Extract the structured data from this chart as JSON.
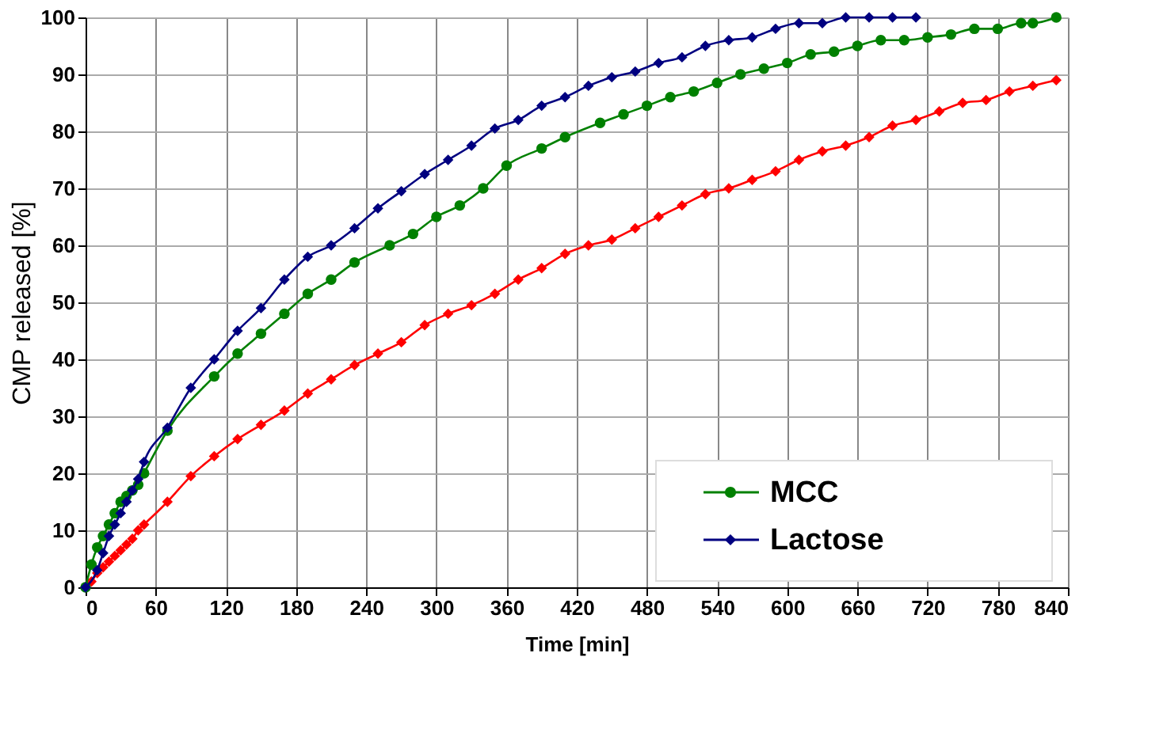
{
  "chart_data": {
    "type": "line",
    "xlabel": "Time [min]",
    "ylabel": "CMP released [%]",
    "xlim": [
      0,
      840
    ],
    "xticks": [
      0,
      60,
      120,
      180,
      240,
      300,
      360,
      420,
      480,
      540,
      600,
      660,
      720,
      780,
      840
    ],
    "ylim": [
      0,
      100
    ],
    "yticks": [
      0,
      10,
      20,
      30,
      40,
      50,
      60,
      70,
      80,
      90,
      100
    ],
    "grid": true,
    "legend": "bottom right",
    "line_style": "solid",
    "series": [
      {
        "color": "#ff0000",
        "marker": "diamond",
        "x": [
          0,
          5,
          10,
          15,
          20,
          25,
          30,
          35,
          40,
          45,
          50,
          70,
          90,
          110,
          130,
          150,
          170,
          190,
          210,
          230,
          250,
          270,
          290,
          310,
          330,
          350,
          370,
          390,
          410,
          430,
          450,
          470,
          490,
          510,
          530,
          550,
          570,
          590,
          610,
          630,
          650,
          670,
          690,
          710,
          730,
          750,
          770,
          790,
          810,
          830
        ],
        "values": [
          0,
          1,
          2.5,
          3.5,
          4.5,
          5.5,
          6.5,
          7.5,
          8.5,
          10,
          11,
          15,
          19.5,
          23,
          26,
          28.5,
          31,
          34,
          36.5,
          39,
          41,
          43,
          46,
          48,
          49.5,
          51.5,
          54,
          56,
          58.5,
          60,
          61,
          63,
          65,
          67,
          69,
          70,
          71.5,
          73,
          75,
          76.5,
          77.5,
          79,
          81,
          82,
          83.5,
          85,
          85.5,
          87,
          88,
          89
        ]
      },
      {
        "name": "MCC",
        "color": "#008000",
        "marker": "circle",
        "x": [
          0,
          5,
          10,
          15,
          20,
          25,
          30,
          35,
          40,
          45,
          50,
          70,
          110,
          130,
          150,
          170,
          190,
          210,
          230,
          260,
          280,
          300,
          320,
          340,
          360,
          390,
          410,
          440,
          460,
          480,
          500,
          520,
          540,
          560,
          580,
          600,
          620,
          640,
          660,
          680,
          700,
          720,
          740,
          760,
          780,
          800,
          810,
          830
        ],
        "values": [
          0,
          4,
          7,
          9,
          11,
          13,
          15,
          16,
          17,
          18,
          20,
          27.5,
          37,
          41,
          44.5,
          48,
          51.5,
          54,
          57,
          60,
          62,
          65,
          67,
          70,
          74,
          77,
          79,
          81.5,
          83,
          84.5,
          86,
          87,
          88.5,
          90,
          91,
          92,
          93.5,
          94,
          95,
          96,
          96,
          96.5,
          97,
          98,
          98,
          99,
          99,
          100
        ]
      },
      {
        "name": "Lactose",
        "color": "#000080",
        "marker": "diamond",
        "x": [
          0,
          10,
          15,
          20,
          25,
          30,
          35,
          40,
          45,
          50,
          70,
          90,
          110,
          130,
          150,
          170,
          190,
          210,
          230,
          250,
          270,
          290,
          310,
          330,
          350,
          370,
          390,
          410,
          430,
          450,
          470,
          490,
          510,
          530,
          550,
          570,
          590,
          610,
          630,
          650,
          670,
          690,
          710
        ],
        "values": [
          0,
          3,
          6,
          9,
          11,
          13,
          15,
          17,
          19,
          22,
          28,
          35,
          40,
          45,
          49,
          54,
          58,
          60,
          63,
          66.5,
          69.5,
          72.5,
          75,
          77.5,
          80.5,
          82,
          84.5,
          86,
          88,
          89.5,
          90.5,
          92,
          93,
          95,
          96,
          96.5,
          98,
          99,
          99,
          100,
          100,
          100,
          100
        ]
      }
    ]
  }
}
